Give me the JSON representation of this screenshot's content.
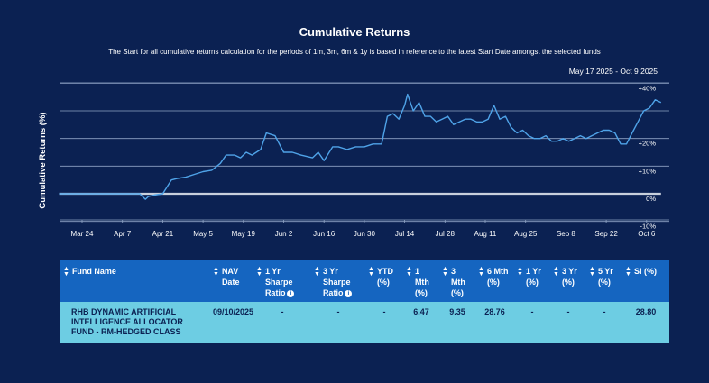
{
  "header": {
    "title": "Cumulative Returns",
    "subtitle": "The Start for all cumulative returns calculation for the periods of 1m, 3m, 6m & 1y is based in reference to the latest Start Date amongst the selected funds",
    "date_range": "May 17 2025 - Oct 9 2025"
  },
  "chart_data": {
    "type": "line",
    "ylabel": "Cumulative Returns (%)",
    "ylim": [
      -10,
      40
    ],
    "y_ticks": [
      -10,
      0,
      10,
      20,
      30,
      40
    ],
    "y_tick_labels": [
      "-10%",
      "0%",
      "+10%",
      "+20%",
      "",
      "+40%"
    ],
    "x_ticks": [
      "Mar 24",
      "Apr 7",
      "Apr 21",
      "May 5",
      "May 19",
      "Jun 2",
      "Jun 16",
      "Jun 30",
      "Jul 14",
      "Jul 28",
      "Aug 11",
      "Aug 25",
      "Sep 8",
      "Sep 22",
      "Oct 6"
    ],
    "x_tick_index": [
      0,
      14,
      28,
      42,
      56,
      70,
      84,
      98,
      112,
      126,
      140,
      154,
      168,
      182,
      196
    ],
    "grid": true,
    "series": [
      {
        "name": "RHB Dynamic Artificial Intelligence Allocator Fund - RM-Hedged Class",
        "color": "#4fa3e8",
        "x": [
          -8,
          0,
          10,
          20,
          22,
          23,
          25,
          28,
          31,
          33,
          36,
          39,
          42,
          45,
          48,
          50,
          53,
          55,
          57,
          59,
          62,
          64,
          67,
          70,
          73,
          76,
          80,
          82,
          84,
          87,
          89,
          92,
          95,
          98,
          101,
          104,
          106,
          108,
          110,
          112,
          113,
          115,
          117,
          119,
          121,
          123,
          125,
          127,
          129,
          131,
          133,
          135,
          137,
          139,
          141,
          143,
          145,
          147,
          149,
          151,
          153,
          155,
          157,
          159,
          161,
          163,
          165,
          167,
          169,
          171,
          173,
          175,
          177,
          179,
          181,
          183,
          185,
          187,
          189,
          191,
          193,
          195,
          197,
          199,
          201
        ],
        "values": [
          0,
          0,
          0,
          0,
          -2,
          -1,
          -0.5,
          0,
          5,
          5.5,
          6,
          7,
          8,
          8.5,
          11,
          14,
          14,
          13,
          15,
          14,
          16,
          22,
          21,
          15,
          15,
          14,
          13,
          15,
          12,
          17,
          17,
          16,
          17,
          17,
          18,
          18,
          28,
          29,
          27,
          32,
          36,
          30,
          33,
          28,
          28,
          26,
          27,
          28,
          25,
          26,
          27,
          27,
          26,
          26,
          27,
          32,
          27,
          28,
          24,
          22,
          23,
          21,
          20,
          20,
          21,
          19,
          19,
          20,
          19,
          20,
          21,
          20,
          21,
          22,
          23,
          23,
          22,
          18,
          18,
          22,
          26,
          30,
          31,
          34,
          33
        ]
      },
      {
        "name": "Baseline",
        "color": "#c8d0dc",
        "x": [
          -8,
          201
        ],
        "values": [
          0,
          0
        ]
      }
    ]
  },
  "table": {
    "headers": [
      {
        "label": "Fund Name",
        "info": false
      },
      {
        "label": "NAV Date",
        "info": false
      },
      {
        "label": "1 Yr Sharpe Ratio",
        "info": true
      },
      {
        "label": "3 Yr Sharpe Ratio",
        "info": true
      },
      {
        "label": "YTD (%)",
        "info": false
      },
      {
        "label": "1 Mth (%)",
        "info": false
      },
      {
        "label": "3 Mth (%)",
        "info": false
      },
      {
        "label": "6 Mth (%)",
        "info": false
      },
      {
        "label": "1 Yr (%)",
        "info": false
      },
      {
        "label": "3 Yr (%)",
        "info": false
      },
      {
        "label": "5 Yr (%)",
        "info": false
      },
      {
        "label": "SI (%)",
        "info": false
      }
    ],
    "info_glyph": "i",
    "sort_glyph": "▲▼",
    "rows": [
      [
        "RHB DYNAMIC ARTIFICIAL INTELLIGENCE ALLOCATOR FUND - RM-HEDGED CLASS",
        "09/10/2025",
        "-",
        "-",
        "-",
        "6.47",
        "9.35",
        "28.76",
        "-",
        "-",
        "-",
        "28.80"
      ]
    ]
  }
}
